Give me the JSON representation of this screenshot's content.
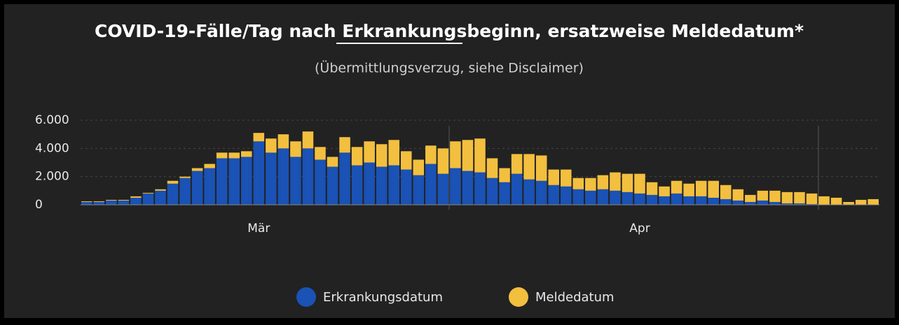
{
  "chart_data": {
    "type": "stacked-bar",
    "title": "COVID-19-Fälle/Tag nach Erkrankungsbeginn, ersatzweise Meldedatum*",
    "subtitle": "(Übermittlungsverzug, siehe Disclaimer)",
    "categories": [
      null,
      null,
      null,
      null,
      null,
      null,
      null,
      null,
      null,
      null,
      null,
      null,
      null,
      null,
      "Mär",
      null,
      null,
      null,
      null,
      null,
      null,
      null,
      null,
      null,
      null,
      null,
      null,
      null,
      null,
      null,
      null,
      null,
      null,
      null,
      null,
      null,
      null,
      null,
      null,
      null,
      null,
      null,
      null,
      null,
      null,
      "Apr",
      null,
      null,
      null,
      null,
      null,
      null,
      null,
      null,
      null,
      null,
      null,
      null,
      null,
      null,
      null,
      null,
      null,
      null,
      null
    ],
    "series": [
      {
        "name": "Erkrankungsdatum",
        "color": "#1a52b5",
        "values": [
          200,
          200,
          300,
          300,
          500,
          800,
          1000,
          1500,
          1900,
          2400,
          2600,
          3300,
          3300,
          3400,
          4500,
          3700,
          4000,
          3400,
          4000,
          3200,
          2700,
          3700,
          2800,
          3000,
          2700,
          2800,
          2500,
          2100,
          2900,
          2200,
          2600,
          2400,
          2300,
          1900,
          1600,
          2200,
          1800,
          1700,
          1400,
          1300,
          1100,
          1000,
          1100,
          1000,
          900,
          800,
          700,
          600,
          800,
          600,
          600,
          500,
          400,
          300,
          200,
          300,
          200,
          100,
          100,
          50,
          0,
          0,
          0,
          0,
          0
        ]
      },
      {
        "name": "Meldedatum",
        "color": "#f3bf3f",
        "values": [
          50,
          50,
          50,
          50,
          100,
          50,
          100,
          200,
          100,
          200,
          300,
          400,
          400,
          400,
          600,
          1000,
          1000,
          1100,
          1200,
          900,
          700,
          1100,
          1300,
          1500,
          1600,
          1800,
          1300,
          1100,
          1300,
          1800,
          1900,
          2200,
          2400,
          1400,
          1000,
          1400,
          1800,
          1800,
          1100,
          1200,
          800,
          900,
          1000,
          1300,
          1300,
          1400,
          900,
          700,
          900,
          900,
          1100,
          1200,
          1000,
          800,
          500,
          700,
          800,
          800,
          800,
          750,
          600,
          500,
          200,
          350,
          400
        ]
      }
    ],
    "ylim": [
      0,
      6000
    ],
    "yticks": [
      0,
      {
        "value": 2000,
        "label": "2.000"
      },
      {
        "value": 4000,
        "label": "4.000"
      },
      {
        "value": 6000,
        "label": "6.000"
      }
    ],
    "grid": true,
    "legend": "bottom"
  }
}
